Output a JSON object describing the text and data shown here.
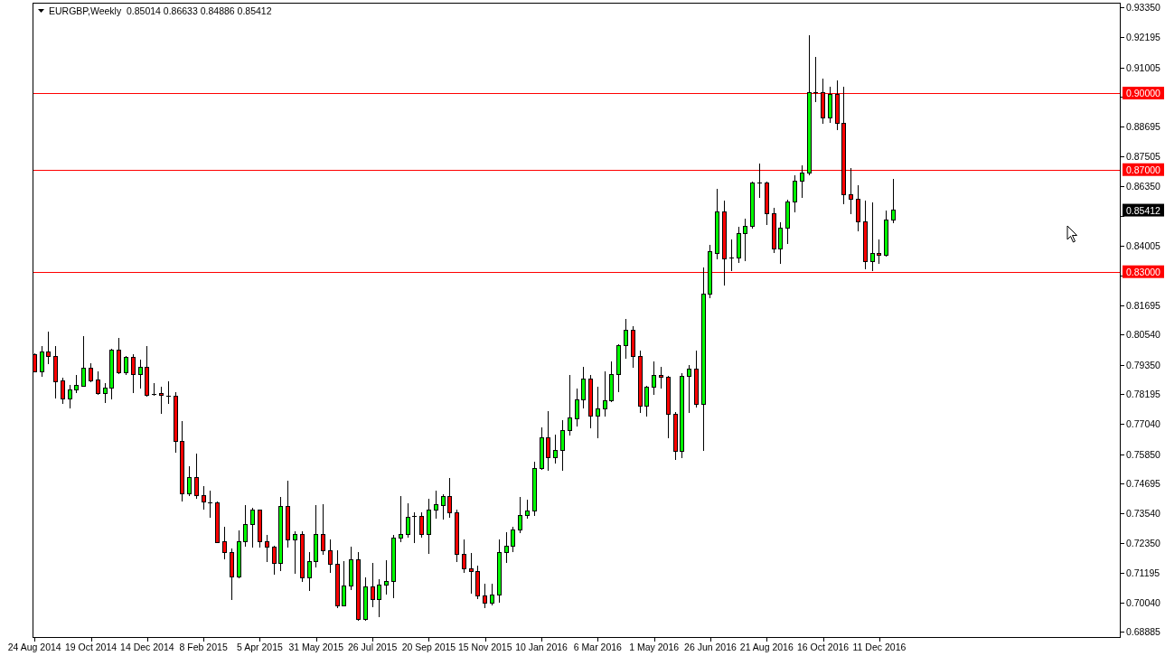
{
  "chart_data": {
    "type": "candlestick",
    "title": "EURGBP,Weekly  0.85014 0.86633 0.84886 0.85412",
    "x": [
      "2014-08-24",
      "2014-08-31",
      "2014-09-07",
      "2014-09-14",
      "2014-09-21",
      "2014-09-28",
      "2014-10-05",
      "2014-10-12",
      "2014-10-19",
      "2014-10-26",
      "2014-11-02",
      "2014-11-09",
      "2014-11-16",
      "2014-11-23",
      "2014-11-30",
      "2014-12-07",
      "2014-12-14",
      "2014-12-21",
      "2014-12-28",
      "2015-01-04",
      "2015-01-11",
      "2015-01-18",
      "2015-01-25",
      "2015-02-01",
      "2015-02-08",
      "2015-02-15",
      "2015-02-22",
      "2015-03-01",
      "2015-03-08",
      "2015-03-15",
      "2015-03-22",
      "2015-03-29",
      "2015-04-05",
      "2015-04-12",
      "2015-04-19",
      "2015-04-26",
      "2015-05-03",
      "2015-05-10",
      "2015-05-17",
      "2015-05-24",
      "2015-05-31",
      "2015-06-07",
      "2015-06-14",
      "2015-06-21",
      "2015-06-28",
      "2015-07-05",
      "2015-07-12",
      "2015-07-19",
      "2015-07-26",
      "2015-08-02",
      "2015-08-09",
      "2015-08-16",
      "2015-08-23",
      "2015-08-30",
      "2015-09-06",
      "2015-09-13",
      "2015-09-20",
      "2015-09-27",
      "2015-10-04",
      "2015-10-11",
      "2015-10-18",
      "2015-10-25",
      "2015-11-01",
      "2015-11-08",
      "2015-11-15",
      "2015-11-22",
      "2015-11-29",
      "2015-12-06",
      "2015-12-13",
      "2015-12-20",
      "2015-12-27",
      "2016-01-03",
      "2016-01-10",
      "2016-01-17",
      "2016-01-24",
      "2016-01-31",
      "2016-02-07",
      "2016-02-14",
      "2016-02-21",
      "2016-02-28",
      "2016-03-06",
      "2016-03-13",
      "2016-03-20",
      "2016-03-27",
      "2016-04-03",
      "2016-04-10",
      "2016-04-17",
      "2016-04-24",
      "2016-05-01",
      "2016-05-08",
      "2016-05-15",
      "2016-05-22",
      "2016-05-29",
      "2016-06-05",
      "2016-06-12",
      "2016-06-19",
      "2016-06-26",
      "2016-07-03",
      "2016-07-10",
      "2016-07-17",
      "2016-07-24",
      "2016-07-31",
      "2016-08-07",
      "2016-08-14",
      "2016-08-21",
      "2016-08-28",
      "2016-09-04",
      "2016-09-11",
      "2016-09-18",
      "2016-09-25",
      "2016-10-02",
      "2016-10-09",
      "2016-10-16",
      "2016-10-23",
      "2016-10-30",
      "2016-11-06",
      "2016-11-13",
      "2016-11-20",
      "2016-11-27",
      "2016-12-04",
      "2016-12-11",
      "2016-12-18",
      "2016-12-25"
    ],
    "ohlc": [
      [
        0.7974,
        0.798,
        0.7905,
        0.7909
      ],
      [
        0.7909,
        0.801,
        0.7888,
        0.7984
      ],
      [
        0.7984,
        0.8064,
        0.7937,
        0.7967
      ],
      [
        0.7968,
        0.801,
        0.7805,
        0.787
      ],
      [
        0.7871,
        0.7885,
        0.7782,
        0.7803
      ],
      [
        0.7803,
        0.7857,
        0.7764,
        0.7836
      ],
      [
        0.7836,
        0.7897,
        0.7824,
        0.7854
      ],
      [
        0.7852,
        0.8046,
        0.785,
        0.7921
      ],
      [
        0.7921,
        0.794,
        0.7867,
        0.7874
      ],
      [
        0.7875,
        0.7911,
        0.7819,
        0.7824
      ],
      [
        0.7824,
        0.7862,
        0.7784,
        0.7843
      ],
      [
        0.7843,
        0.7998,
        0.7799,
        0.7991
      ],
      [
        0.7991,
        0.8039,
        0.79,
        0.7905
      ],
      [
        0.7905,
        0.797,
        0.7896,
        0.7965
      ],
      [
        0.7964,
        0.7975,
        0.7826,
        0.7896
      ],
      [
        0.7896,
        0.7954,
        0.7841,
        0.7924
      ],
      [
        0.7924,
        0.8007,
        0.781,
        0.7817
      ],
      [
        0.7819,
        0.7865,
        0.7815,
        0.7819
      ],
      [
        0.7822,
        0.7851,
        0.7742,
        0.7814
      ],
      [
        0.7812,
        0.7872,
        0.7782,
        0.7812
      ],
      [
        0.7811,
        0.7829,
        0.7591,
        0.7635
      ],
      [
        0.7635,
        0.7713,
        0.7401,
        0.743
      ],
      [
        0.743,
        0.7537,
        0.7421,
        0.7493
      ],
      [
        0.7493,
        0.7589,
        0.7411,
        0.7422
      ],
      [
        0.7422,
        0.7459,
        0.7368,
        0.7398
      ],
      [
        0.7396,
        0.7441,
        0.7336,
        0.7396
      ],
      [
        0.7394,
        0.7401,
        0.7235,
        0.724
      ],
      [
        0.7242,
        0.73,
        0.7174,
        0.7199
      ],
      [
        0.72,
        0.7217,
        0.7012,
        0.7104
      ],
      [
        0.7104,
        0.7288,
        0.71,
        0.7242
      ],
      [
        0.7242,
        0.7384,
        0.7223,
        0.7309
      ],
      [
        0.7309,
        0.7376,
        0.722,
        0.7366
      ],
      [
        0.7366,
        0.7369,
        0.7219,
        0.7242
      ],
      [
        0.7242,
        0.7268,
        0.7161,
        0.722
      ],
      [
        0.7221,
        0.7225,
        0.7114,
        0.7157
      ],
      [
        0.7157,
        0.7419,
        0.7128,
        0.738
      ],
      [
        0.7381,
        0.748,
        0.722,
        0.7248
      ],
      [
        0.7248,
        0.7282,
        0.7116,
        0.727
      ],
      [
        0.727,
        0.7282,
        0.7086,
        0.71
      ],
      [
        0.71,
        0.72,
        0.705,
        0.7164
      ],
      [
        0.7164,
        0.7386,
        0.7142,
        0.727
      ],
      [
        0.727,
        0.7388,
        0.719,
        0.7206
      ],
      [
        0.7207,
        0.725,
        0.7121,
        0.7153
      ],
      [
        0.7154,
        0.7208,
        0.6983,
        0.6991
      ],
      [
        0.6991,
        0.7166,
        0.6988,
        0.7069
      ],
      [
        0.7069,
        0.7221,
        0.7054,
        0.7171
      ],
      [
        0.7171,
        0.72,
        0.6933,
        0.6937
      ],
      [
        0.6937,
        0.7102,
        0.6933,
        0.7065
      ],
      [
        0.7065,
        0.7159,
        0.6984,
        0.7016
      ],
      [
        0.7016,
        0.7094,
        0.6948,
        0.7072
      ],
      [
        0.7071,
        0.7169,
        0.7036,
        0.7087
      ],
      [
        0.7087,
        0.7267,
        0.7022,
        0.7256
      ],
      [
        0.7256,
        0.742,
        0.7241,
        0.727
      ],
      [
        0.727,
        0.7392,
        0.7259,
        0.7337
      ],
      [
        0.734,
        0.7357,
        0.7237,
        0.734
      ],
      [
        0.7341,
        0.7357,
        0.7259,
        0.7269
      ],
      [
        0.7269,
        0.7409,
        0.7193,
        0.7366
      ],
      [
        0.7366,
        0.7441,
        0.7333,
        0.7387
      ],
      [
        0.7383,
        0.7428,
        0.7329,
        0.7419
      ],
      [
        0.7419,
        0.7491,
        0.7336,
        0.7355
      ],
      [
        0.7355,
        0.7369,
        0.7163,
        0.7193
      ],
      [
        0.7193,
        0.725,
        0.7121,
        0.7136
      ],
      [
        0.7136,
        0.7197,
        0.704,
        0.7126
      ],
      [
        0.7126,
        0.715,
        0.7019,
        0.703
      ],
      [
        0.703,
        0.7077,
        0.6981,
        0.7002
      ],
      [
        0.7002,
        0.7077,
        0.6991,
        0.7032
      ],
      [
        0.7032,
        0.725,
        0.7004,
        0.72
      ],
      [
        0.72,
        0.7279,
        0.716,
        0.7224
      ],
      [
        0.7224,
        0.7302,
        0.7202,
        0.7288
      ],
      [
        0.7288,
        0.7417,
        0.7276,
        0.7345
      ],
      [
        0.7345,
        0.7406,
        0.7333,
        0.7362
      ],
      [
        0.7363,
        0.7554,
        0.7342,
        0.7529
      ],
      [
        0.7528,
        0.7691,
        0.7523,
        0.7649
      ],
      [
        0.7649,
        0.7755,
        0.752,
        0.7573
      ],
      [
        0.7573,
        0.7663,
        0.7548,
        0.7599
      ],
      [
        0.7598,
        0.7717,
        0.752,
        0.7677
      ],
      [
        0.7677,
        0.7897,
        0.7657,
        0.7726
      ],
      [
        0.7725,
        0.7843,
        0.7692,
        0.7797
      ],
      [
        0.7797,
        0.7928,
        0.7764,
        0.7879
      ],
      [
        0.7879,
        0.7897,
        0.7686,
        0.7733
      ],
      [
        0.7733,
        0.7848,
        0.7647,
        0.7762
      ],
      [
        0.7762,
        0.7911,
        0.7733,
        0.7793
      ],
      [
        0.7793,
        0.7947,
        0.779,
        0.7896
      ],
      [
        0.7896,
        0.8016,
        0.7828,
        0.8009
      ],
      [
        0.8009,
        0.8115,
        0.7958,
        0.8069
      ],
      [
        0.8069,
        0.8087,
        0.7923,
        0.7967
      ],
      [
        0.7967,
        0.7991,
        0.7748,
        0.7772
      ],
      [
        0.7772,
        0.7853,
        0.7733,
        0.7846
      ],
      [
        0.7846,
        0.7947,
        0.7818,
        0.7892
      ],
      [
        0.7892,
        0.7928,
        0.7843,
        0.7885
      ],
      [
        0.7885,
        0.7892,
        0.7649,
        0.774
      ],
      [
        0.774,
        0.7751,
        0.7563,
        0.7596
      ],
      [
        0.7596,
        0.7903,
        0.757,
        0.7889
      ],
      [
        0.7889,
        0.7935,
        0.7748,
        0.7917
      ],
      [
        0.7917,
        0.7991,
        0.7769,
        0.7779
      ],
      [
        0.7779,
        0.8315,
        0.7599,
        0.8211
      ],
      [
        0.8212,
        0.8406,
        0.8198,
        0.8378
      ],
      [
        0.8373,
        0.8625,
        0.835,
        0.8533
      ],
      [
        0.8533,
        0.858,
        0.8245,
        0.8352
      ],
      [
        0.8353,
        0.8428,
        0.8301,
        0.8353
      ],
      [
        0.8354,
        0.8477,
        0.8333,
        0.8448
      ],
      [
        0.8448,
        0.8507,
        0.834,
        0.8479
      ],
      [
        0.8479,
        0.8654,
        0.8468,
        0.8646
      ],
      [
        0.8649,
        0.8725,
        0.8588,
        0.8649
      ],
      [
        0.8648,
        0.8652,
        0.8482,
        0.8529
      ],
      [
        0.8529,
        0.855,
        0.8373,
        0.839
      ],
      [
        0.839,
        0.8494,
        0.833,
        0.8469
      ],
      [
        0.8469,
        0.8582,
        0.8409,
        0.8575
      ],
      [
        0.8575,
        0.8679,
        0.8531,
        0.8656
      ],
      [
        0.8656,
        0.8718,
        0.8588,
        0.8688
      ],
      [
        0.8688,
        0.9226,
        0.8676,
        0.9001
      ],
      [
        0.9001,
        0.914,
        0.8966,
        0.9001
      ],
      [
        0.9001,
        0.9058,
        0.8878,
        0.8904
      ],
      [
        0.8904,
        0.9024,
        0.8882,
        0.8996
      ],
      [
        0.8996,
        0.905,
        0.8856,
        0.8882
      ],
      [
        0.8882,
        0.9024,
        0.8563,
        0.8603
      ],
      [
        0.8603,
        0.8707,
        0.8524,
        0.8585
      ],
      [
        0.8585,
        0.864,
        0.8457,
        0.8497
      ],
      [
        0.8497,
        0.8578,
        0.831,
        0.8338
      ],
      [
        0.8338,
        0.8571,
        0.8303,
        0.8373
      ],
      [
        0.8373,
        0.8426,
        0.8331,
        0.8363
      ],
      [
        0.8363,
        0.8541,
        0.8359,
        0.8501
      ],
      [
        0.85014,
        0.86633,
        0.84886,
        0.85412
      ]
    ],
    "colors": [
      "#ff0000",
      "#00ff00",
      "#ff0000",
      "#ff0000",
      "#ff0000",
      "#00ff00",
      "#00ff00",
      "#00ff00",
      "#ff0000",
      "#ff0000",
      "#00ff00",
      "#00ff00",
      "#ff0000",
      "#00ff00",
      "#ff0000",
      "#00ff00",
      "#ff0000",
      "#000000",
      "#ff0000",
      "#000000",
      "#ff0000",
      "#ff0000",
      "#00ff00",
      "#ff0000",
      "#ff0000",
      "#000000",
      "#ff0000",
      "#ff0000",
      "#ff0000",
      "#00ff00",
      "#00ff00",
      "#00ff00",
      "#ff0000",
      "#ff0000",
      "#ff0000",
      "#00ff00",
      "#ff0000",
      "#00ff00",
      "#ff0000",
      "#00ff00",
      "#00ff00",
      "#ff0000",
      "#ff0000",
      "#ff0000",
      "#00ff00",
      "#00ff00",
      "#ff0000",
      "#00ff00",
      "#ff0000",
      "#00ff00",
      "#00ff00",
      "#00ff00",
      "#00ff00",
      "#00ff00",
      "#000000",
      "#ff0000",
      "#00ff00",
      "#00ff00",
      "#00ff00",
      "#ff0000",
      "#ff0000",
      "#ff0000",
      "#ff0000",
      "#ff0000",
      "#ff0000",
      "#00ff00",
      "#00ff00",
      "#00ff00",
      "#00ff00",
      "#00ff00",
      "#00ff00",
      "#00ff00",
      "#00ff00",
      "#ff0000",
      "#00ff00",
      "#00ff00",
      "#00ff00",
      "#00ff00",
      "#00ff00",
      "#ff0000",
      "#00ff00",
      "#00ff00",
      "#00ff00",
      "#00ff00",
      "#00ff00",
      "#ff0000",
      "#ff0000",
      "#00ff00",
      "#00ff00",
      "#ff0000",
      "#ff0000",
      "#ff0000",
      "#00ff00",
      "#00ff00",
      "#ff0000",
      "#00ff00",
      "#00ff00",
      "#00ff00",
      "#ff0000",
      "#000000",
      "#00ff00",
      "#00ff00",
      "#00ff00",
      "#000000",
      "#ff0000",
      "#ff0000",
      "#00ff00",
      "#00ff00",
      "#00ff00",
      "#00ff00",
      "#00ff00",
      "#000000",
      "#ff0000",
      "#00ff00",
      "#ff0000",
      "#ff0000",
      "#ff0000",
      "#ff0000",
      "#ff0000",
      "#00ff00",
      "#ff0000",
      "#00ff00",
      "#00ff00"
    ],
    "xlim": [
      "2014-08-22",
      "2017-08-08"
    ],
    "xticks": [
      {
        "value": "2014-08-24",
        "label": "24 Aug 2014"
      },
      {
        "value": "2014-10-19",
        "label": "19 Oct 2014"
      },
      {
        "value": "2014-12-14",
        "label": "14 Dec 2014"
      },
      {
        "value": "2015-02-08",
        "label": "8 Feb 2015"
      },
      {
        "value": "2015-04-05",
        "label": "5 Apr 2015"
      },
      {
        "value": "2015-05-31",
        "label": "31 May 2015"
      },
      {
        "value": "2015-07-26",
        "label": "26 Jul 2015"
      },
      {
        "value": "2015-09-20",
        "label": "20 Sep 2015"
      },
      {
        "value": "2015-11-15",
        "label": "15 Nov 2015"
      },
      {
        "value": "2016-01-10",
        "label": "10 Jan 2016"
      },
      {
        "value": "2016-03-06",
        "label": "6 Mar 2016"
      },
      {
        "value": "2016-05-01",
        "label": "1 May 2016"
      },
      {
        "value": "2016-06-26",
        "label": "26 Jun 2016"
      },
      {
        "value": "2016-08-21",
        "label": "21 Aug 2016"
      },
      {
        "value": "2016-10-16",
        "label": "16 Oct 2016"
      },
      {
        "value": "2016-12-11",
        "label": "11 Dec 2016"
      }
    ],
    "ylim": [
      0.6865,
      0.9354
    ],
    "yticks": [
      {
        "value": 0.9335,
        "label": "0.93350"
      },
      0.92195,
      0.91005,
      {
        "value": 0.8985,
        "label": null
      },
      0.88695,
      0.87505,
      {
        "value": 0.8635,
        "label": "0.86350"
      },
      {
        "value": 0.85195,
        "label": null
      },
      0.84005,
      {
        "value": 0.8285,
        "label": null
      },
      0.81695,
      {
        "value": 0.8054,
        "label": "0.80540"
      },
      {
        "value": 0.7935,
        "label": "0.79350"
      },
      0.78195,
      {
        "value": 0.7704,
        "label": "0.77040"
      },
      {
        "value": 0.7585,
        "label": "0.75850"
      },
      0.74695,
      {
        "value": 0.7354,
        "label": "0.73540"
      },
      {
        "value": 0.7235,
        "label": "0.72350"
      },
      0.71195,
      {
        "value": 0.7004,
        "label": "0.70040"
      },
      0.68885
    ],
    "ref_lines": [
      {
        "axis": "y",
        "value": 0.9,
        "label": "0.90000",
        "color": "#ff0000"
      },
      {
        "axis": "y",
        "value": 0.87,
        "label": "0.87000",
        "color": "#ff0000"
      },
      {
        "axis": "y",
        "value": 0.83,
        "label": "0.83000",
        "color": "#ff0000"
      }
    ],
    "annotations": [
      "0.85412"
    ]
  }
}
